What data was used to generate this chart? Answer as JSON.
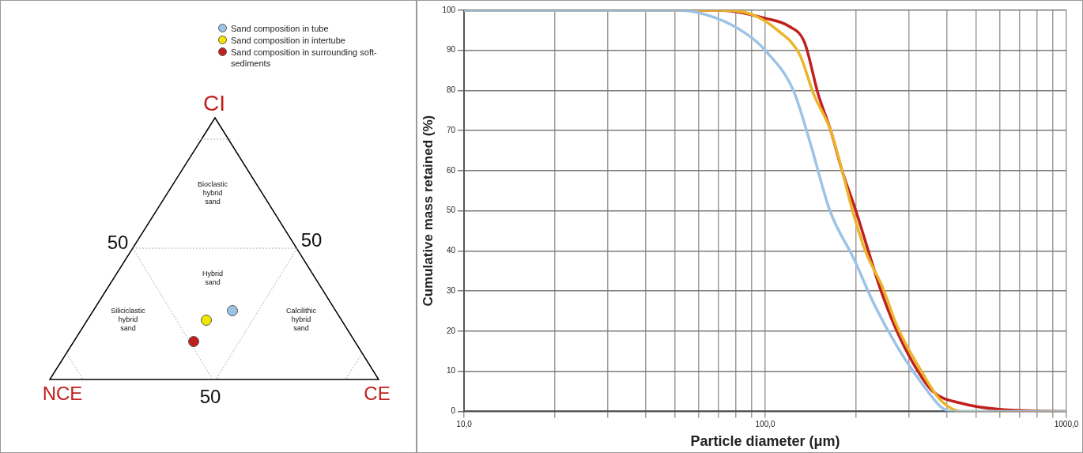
{
  "chart_data": [
    {
      "type": "other",
      "legend": "top right",
      "annotations": [
        "CI",
        "NCE",
        "CE",
        "50",
        "50",
        "50",
        "Bioclastic hybrid sand",
        "Hybrid sand",
        "Siliciclastic hybrid sand",
        "Calcilithic hybrid sand"
      ],
      "series": [
        {
          "name": "Sand composition in tube",
          "color": "#9dc3e6"
        },
        {
          "name": "Sand composition in intertube",
          "color": "#f2e600"
        },
        {
          "name": "Sand composition in surrounding soft-sediments",
          "color": "#c0201e"
        }
      ]
    },
    {
      "type": "line",
      "log": "x",
      "grid": true,
      "legend": false,
      "marker": "none",
      "line_style": "solid",
      "xlabel": "Particle diameter (μm)",
      "ylabel": "Cumulative mass retained (%)",
      "xlim": [
        10,
        1000
      ],
      "ylim": [
        0,
        100
      ],
      "xticks": [
        {
          "value": 10,
          "label": "10,0"
        },
        {
          "value": 20,
          "label": null
        },
        {
          "value": 30,
          "label": null
        },
        {
          "value": 40,
          "label": null
        },
        {
          "value": 50,
          "label": null
        },
        {
          "value": 60,
          "label": null
        },
        {
          "value": 70,
          "label": null
        },
        {
          "value": 80,
          "label": null
        },
        {
          "value": 90,
          "label": null
        },
        {
          "value": 100,
          "label": "100,0"
        },
        {
          "value": 200,
          "label": null
        },
        {
          "value": 300,
          "label": null
        },
        {
          "value": 400,
          "label": null
        },
        {
          "value": 500,
          "label": null
        },
        {
          "value": 600,
          "label": null
        },
        {
          "value": 700,
          "label": null
        },
        {
          "value": 800,
          "label": null
        },
        {
          "value": 900,
          "label": null
        },
        {
          "value": 1000,
          "label": "1000,0"
        }
      ],
      "yticks": [
        0,
        10,
        20,
        30,
        40,
        50,
        60,
        70,
        80,
        90,
        100
      ],
      "series": [
        {
          "color": "#9dc3e6",
          "x": [
            10,
            40,
            52,
            69,
            87,
            100,
            124,
            141,
            164,
            197,
            229,
            275,
            331,
            385,
            420,
            1000
          ],
          "values": [
            100,
            100,
            100,
            98,
            94,
            90,
            80,
            67,
            50,
            38,
            27,
            16,
            7,
            1,
            0,
            0
          ]
        },
        {
          "color": "#ecb42a",
          "x": [
            10,
            50,
            70,
            90,
            110,
            130,
            145,
            165,
            180,
            195,
            215,
            245,
            275,
            330,
            380,
            450,
            1000
          ],
          "values": [
            100,
            100,
            100,
            99,
            95,
            89,
            79,
            70,
            60,
            50,
            40,
            31,
            21,
            10,
            3,
            0,
            0
          ]
        },
        {
          "color": "#c0201e",
          "x": [
            10,
            50,
            70,
            100,
            120,
            135,
            150,
            165,
            180,
            200,
            220,
            240,
            270,
            310,
            360,
            450,
            600,
            1000
          ],
          "values": [
            100,
            100,
            100,
            98,
            96,
            92,
            79,
            70,
            60,
            50,
            40,
            31,
            21,
            12,
            5,
            2,
            0.5,
            0
          ]
        }
      ]
    }
  ]
}
